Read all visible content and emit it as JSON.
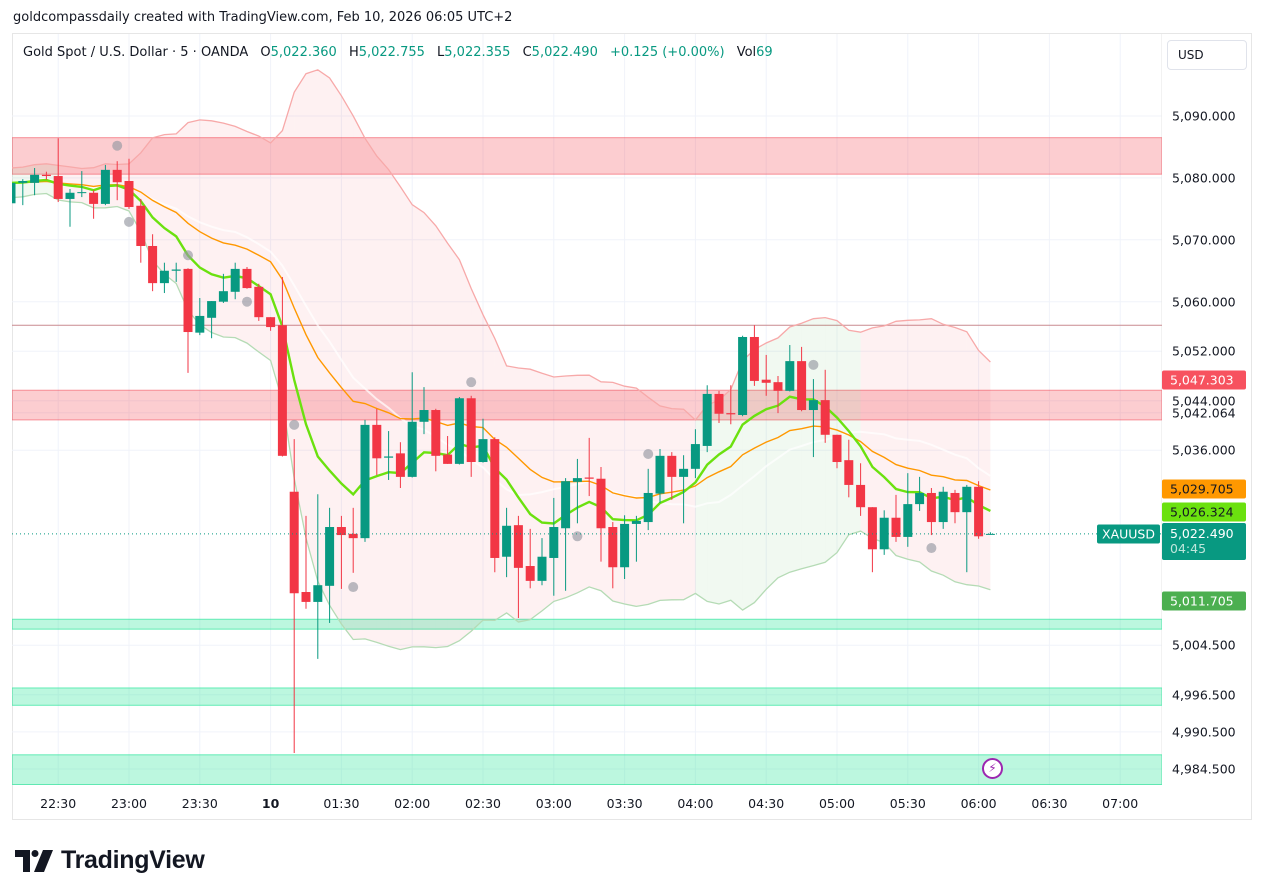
{
  "credit": "goldcompassdaily created with TradingView.com, Feb 10, 2026 06:05 UTC+2",
  "legend": {
    "symbol": "Gold Spot / U.S. Dollar · 5 · OANDA",
    "o_label": "O",
    "o": "5,022.360",
    "h_label": "H",
    "h": "5,022.755",
    "l_label": "L",
    "l": "5,022.355",
    "c_label": "C",
    "c": "5,022.490",
    "change": "+0.125 (+0.00%)",
    "vol_label": "Vol",
    "vol": "69"
  },
  "currency_button": "USD",
  "logo_text": "TradingView",
  "colors": {
    "up": "#089981",
    "down": "#f23645",
    "ema_fast": "#6be10f",
    "ema_slow": "#ff9800",
    "band_upper": "#f7a9a9",
    "band_lower": "#b5dbb5",
    "resistance_zone": "#f23645",
    "support_zone": "#2ee59d",
    "marker": "#9598a1",
    "alert": "#9c27b0"
  },
  "price_labels": {
    "upper_band": {
      "text": "5,047.303",
      "value": 5047.303,
      "color": "#f7525f"
    },
    "ema_slow": {
      "text": "5,029.705",
      "value": 5029.705,
      "color": "#ff9800"
    },
    "ema_fast": {
      "text": "5,026.324",
      "value": 5026.324,
      "color": "#6be10f"
    },
    "symbol_tag": "XAUUSD",
    "last": {
      "text": "5,022.490",
      "value": 5022.49,
      "countdown": "04:45",
      "color": "#089981"
    },
    "lower_band": {
      "text": "5,011.705",
      "value": 5011.705,
      "color": "#4caf50"
    }
  },
  "alert_icon": "lightning-icon",
  "chart_data": {
    "type": "candlestick",
    "title": "Gold Spot / U.S. Dollar · 5 · OANDA",
    "interval": "5",
    "ylim": [
      4982,
      5100
    ],
    "grid": true,
    "yticks": [
      "5,090.000",
      "5,080.000",
      "5,070.000",
      "5,060.000",
      "5,052.000",
      "5,044.000",
      "5,042.064",
      "5,036.000",
      "5,004.500",
      "4,996.500",
      "4,990.500",
      "4,984.500"
    ],
    "xticks": [
      "22:30",
      "23:00",
      "23:30",
      "10",
      "01:30",
      "02:00",
      "02:30",
      "03:00",
      "03:30",
      "04:00",
      "04:30",
      "05:00",
      "05:30",
      "06:00",
      "06:30",
      "07:00"
    ],
    "candle_fields": [
      "time",
      "open",
      "high",
      "low",
      "close"
    ],
    "candles": [
      [
        "22:10",
        5075.9,
        5079.2,
        5075.9,
        5079.2
      ],
      [
        "22:15",
        5079.2,
        5079.8,
        5075.6,
        5079.5
      ],
      [
        "22:20",
        5079.2,
        5081.6,
        5077.2,
        5080.5
      ],
      [
        "22:25",
        5080.5,
        5081.0,
        5079.7,
        5080.3
      ],
      [
        "22:30",
        5080.3,
        5086.4,
        5076.1,
        5076.6
      ],
      [
        "22:35",
        5076.6,
        5078.2,
        5072.1,
        5077.6
      ],
      [
        "22:40",
        5077.6,
        5081.1,
        5076.9,
        5077.7
      ],
      [
        "22:45",
        5077.6,
        5078.0,
        5073.4,
        5075.8
      ],
      [
        "22:50",
        5075.8,
        5082.1,
        5075.6,
        5081.3
      ],
      [
        "22:55",
        5081.3,
        5082.7,
        5076.4,
        5079.3
      ],
      [
        "23:00",
        5079.5,
        5083.1,
        5075.0,
        5075.3
      ],
      [
        "23:05",
        5075.5,
        5076.6,
        5066.3,
        5069.0
      ],
      [
        "23:10",
        5069.0,
        5070.9,
        5061.7,
        5063.0
      ],
      [
        "23:15",
        5063.0,
        5066.3,
        5061.4,
        5065.0
      ],
      [
        "23:20",
        5065.0,
        5066.3,
        5063.2,
        5065.2
      ],
      [
        "23:25",
        5065.3,
        5065.4,
        5048.5,
        5055.1
      ],
      [
        "23:30",
        5055.0,
        5060.6,
        5054.6,
        5057.7
      ],
      [
        "23:35",
        5057.4,
        5060.1,
        5054.1,
        5060.1
      ],
      [
        "23:40",
        5060.0,
        5064.5,
        5059.8,
        5061.7
      ],
      [
        "23:45",
        5061.6,
        5066.3,
        5060.4,
        5065.3
      ],
      [
        "23:50",
        5065.3,
        5065.6,
        5062.1,
        5062.2
      ],
      [
        "23:55",
        5062.4,
        5062.9,
        5056.9,
        5057.5
      ],
      [
        "01:00",
        5057.5,
        5057.5,
        5055.3,
        5055.9
      ],
      [
        "01:05",
        5056.2,
        5064.0,
        5035.0,
        5035.1
      ],
      [
        "01:10",
        5029.3,
        5037.8,
        4987.1,
        5012.9
      ],
      [
        "01:15",
        5013.1,
        5025.4,
        5010.4,
        5011.5
      ],
      [
        "01:20",
        5011.5,
        5028.9,
        5002.3,
        5014.2
      ],
      [
        "01:25",
        5014.1,
        5026.7,
        5008.1,
        5023.6
      ],
      [
        "01:30",
        5023.6,
        5025.4,
        5013.6,
        5022.3
      ],
      [
        "01:35",
        5022.5,
        5026.7,
        5016.2,
        5021.8
      ],
      [
        "01:40",
        5021.8,
        5040.9,
        5021.2,
        5040.1
      ],
      [
        "01:45",
        5040.1,
        5042.7,
        5032.0,
        5034.7
      ],
      [
        "01:50",
        5034.8,
        5039.1,
        5031.2,
        5035.0
      ],
      [
        "01:55",
        5035.5,
        5037.3,
        5029.9,
        5031.7
      ],
      [
        "02:00",
        5031.7,
        5048.6,
        5031.6,
        5040.6
      ],
      [
        "02:05",
        5040.6,
        5046.2,
        5038.6,
        5042.5
      ],
      [
        "02:10",
        5042.5,
        5042.7,
        5032.6,
        5035.1
      ],
      [
        "02:15",
        5035.3,
        5038.3,
        5033.8,
        5033.8
      ],
      [
        "02:20",
        5033.8,
        5044.6,
        5033.7,
        5044.4
      ],
      [
        "02:25",
        5044.4,
        5044.8,
        5031.7,
        5034.1
      ],
      [
        "02:30",
        5034.1,
        5041.1,
        5034.0,
        5037.8
      ],
      [
        "02:35",
        5037.8,
        5038.1,
        5016.3,
        5018.6
      ],
      [
        "02:40",
        5018.8,
        5026.7,
        5015.5,
        5023.8
      ],
      [
        "02:45",
        5023.9,
        5025.4,
        5008.9,
        5017.0
      ],
      [
        "02:50",
        5017.3,
        5023.3,
        5013.7,
        5014.9
      ],
      [
        "02:55",
        5014.9,
        5021.8,
        5014.2,
        5018.8
      ],
      [
        "03:00",
        5018.6,
        5028.3,
        5012.5,
        5023.6
      ],
      [
        "03:05",
        5023.4,
        5031.5,
        5013.3,
        5031.0
      ],
      [
        "03:10",
        5030.9,
        5034.6,
        5024.2,
        5031.5
      ],
      [
        "03:15",
        5031.6,
        5038.0,
        5028.6,
        5031.4
      ],
      [
        "03:20",
        5031.4,
        5033.3,
        5018.0,
        5023.4
      ],
      [
        "03:25",
        5023.6,
        5024.4,
        5013.7,
        5017.1
      ],
      [
        "03:30",
        5017.1,
        5025.5,
        5015.2,
        5024.1
      ],
      [
        "03:35",
        5024.1,
        5025.4,
        5018.0,
        5024.6
      ],
      [
        "03:40",
        5024.4,
        5033.0,
        5023.1,
        5029.1
      ],
      [
        "03:45",
        5029.0,
        5036.2,
        5027.5,
        5035.1
      ],
      [
        "03:50",
        5035.1,
        5035.7,
        5028.0,
        5031.7
      ],
      [
        "03:55",
        5031.7,
        5035.2,
        5024.2,
        5033.0
      ],
      [
        "04:00",
        5033.0,
        5039.4,
        5031.5,
        5037.0
      ],
      [
        "04:05",
        5036.7,
        5046.5,
        5035.7,
        5045.1
      ],
      [
        "04:10",
        5045.1,
        5045.6,
        5040.4,
        5041.9
      ],
      [
        "04:15",
        5042.0,
        5046.5,
        5040.2,
        5041.8
      ],
      [
        "04:20",
        5041.7,
        5054.5,
        5041.5,
        5054.3
      ],
      [
        "04:25",
        5054.3,
        5056.2,
        5046.4,
        5047.2
      ],
      [
        "04:30",
        5047.4,
        5051.4,
        5044.8,
        5046.9
      ],
      [
        "04:35",
        5047.0,
        5048.0,
        5042.0,
        5045.6
      ],
      [
        "04:40",
        5045.6,
        5053.0,
        5045.5,
        5050.4
      ],
      [
        "04:45",
        5050.4,
        5052.7,
        5042.3,
        5042.5
      ],
      [
        "04:50",
        5042.5,
        5047.5,
        5034.9,
        5044.1
      ],
      [
        "04:55",
        5044.1,
        5049.0,
        5037.2,
        5038.5
      ],
      [
        "05:00",
        5038.5,
        5038.5,
        5033.1,
        5034.1
      ],
      [
        "05:05",
        5034.4,
        5037.7,
        5028.4,
        5030.4
      ],
      [
        "05:10",
        5030.4,
        5033.9,
        5025.4,
        5026.8
      ],
      [
        "05:15",
        5026.8,
        5026.8,
        5016.3,
        5020.0
      ],
      [
        "05:20",
        5020.0,
        5026.3,
        5019.1,
        5025.1
      ],
      [
        "05:25",
        5025.1,
        5028.8,
        5021.2,
        5022.0
      ],
      [
        "05:30",
        5022.0,
        5032.3,
        5020.4,
        5027.3
      ],
      [
        "05:35",
        5027.3,
        5031.7,
        5026.2,
        5029.1
      ],
      [
        "05:40",
        5029.1,
        5029.9,
        5022.3,
        5024.4
      ],
      [
        "05:45",
        5024.4,
        5030.1,
        5023.3,
        5029.3
      ],
      [
        "05:50",
        5029.1,
        5029.6,
        5024.2,
        5026.0
      ],
      [
        "05:55",
        5026.0,
        5030.4,
        5016.3,
        5030.1
      ],
      [
        "06:00",
        5030.1,
        5031.0,
        5021.7,
        5022.1
      ],
      [
        "06:05",
        5022.36,
        5022.755,
        5022.355,
        5022.49
      ]
    ],
    "markers": [
      [
        "22:55",
        5085.2
      ],
      [
        "23:00",
        5072.9
      ],
      [
        "23:25",
        5067.5
      ],
      [
        "23:50",
        5060.0
      ],
      [
        "01:10",
        5040.1
      ],
      [
        "01:35",
        5013.9
      ],
      [
        "02:25",
        5047.0
      ],
      [
        "03:10",
        5022.1
      ],
      [
        "03:40",
        5035.4
      ],
      [
        "04:50",
        5049.8
      ],
      [
        "05:40",
        5020.2
      ]
    ],
    "zones": [
      {
        "type": "resistance",
        "from": 5080.6,
        "to": 5086.5
      },
      {
        "type": "resistance",
        "from": 5040.9,
        "to": 5045.7
      },
      {
        "type": "support",
        "from": 5007.1,
        "to": 5008.7
      },
      {
        "type": "support",
        "from": 4994.8,
        "to": 4997.6
      },
      {
        "type": "support",
        "from": 4982.0,
        "to": 4986.8
      }
    ],
    "horizontal_line": 5056.2
  }
}
